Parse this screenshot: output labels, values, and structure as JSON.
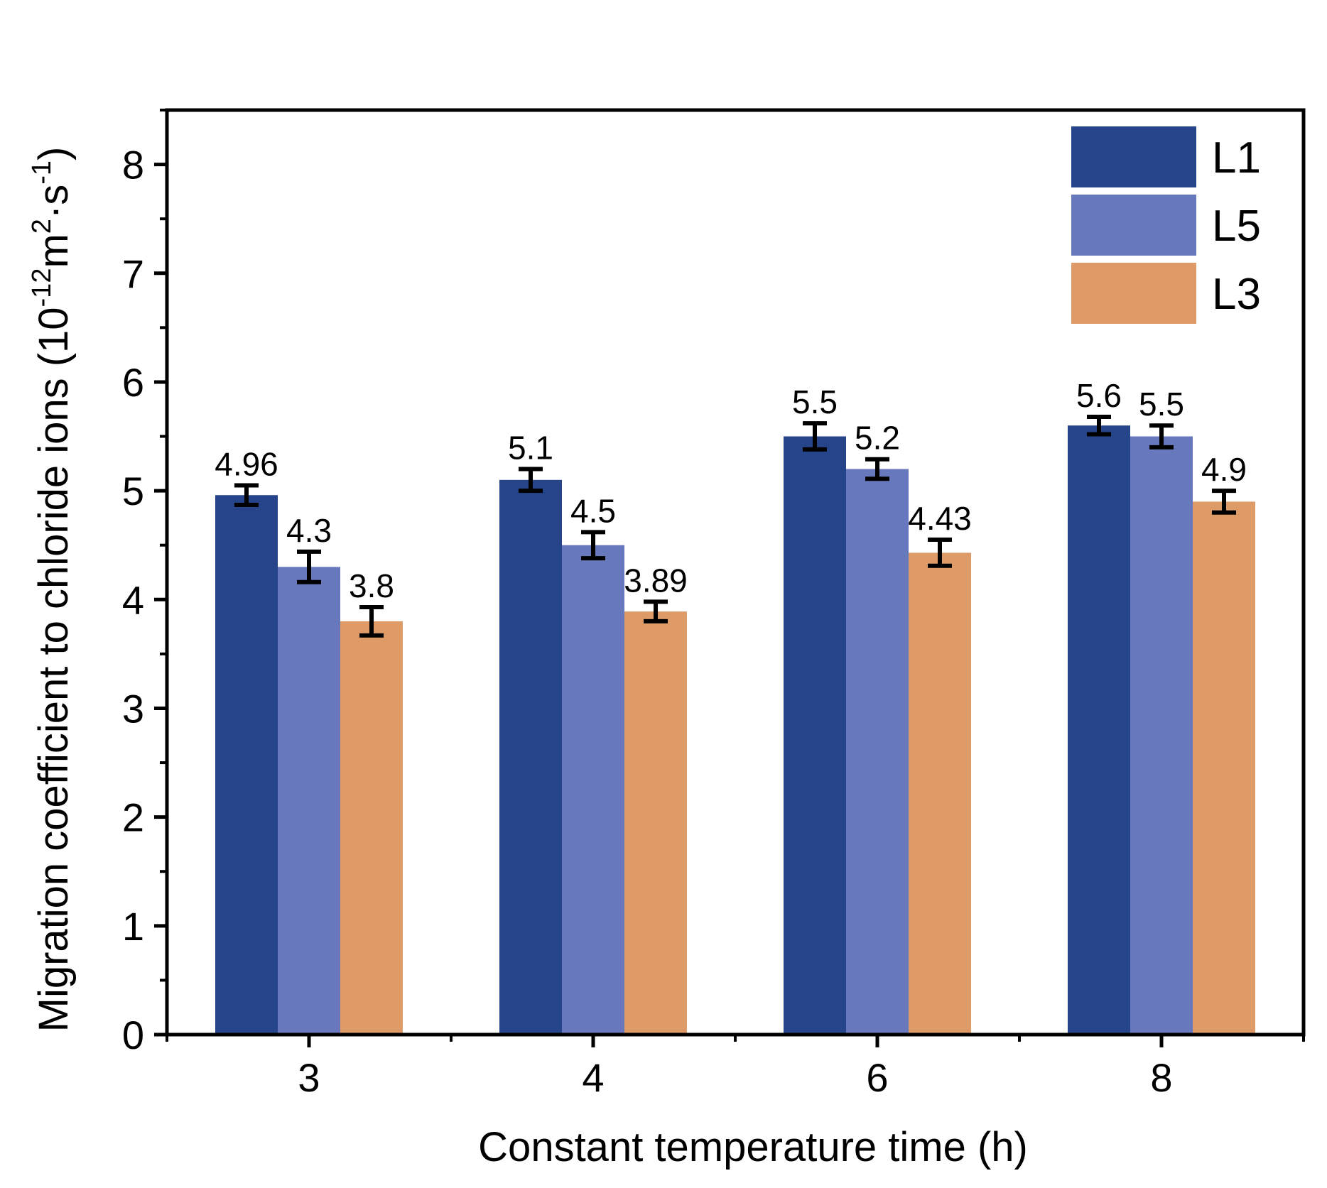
{
  "chart_data": {
    "type": "bar",
    "xlabel": "Constant temperature time (h)",
    "ylabel": "Migration coefficient to chloride ions (10",
    "ylabel_unit": {
      "sup1": "-12",
      "mid": "m",
      "sup2": "2",
      "dot": "·s",
      "sup3": "-1",
      "close": ")"
    },
    "categories": [
      "3",
      "4",
      "6",
      "8"
    ],
    "ylim": [
      0,
      8.5
    ],
    "yticks": [
      0,
      1,
      2,
      3,
      4,
      5,
      6,
      7,
      8
    ],
    "series": [
      {
        "name": "L1",
        "color": "#26448a",
        "values": [
          4.96,
          5.1,
          5.5,
          5.6
        ],
        "errors": [
          0.09,
          0.1,
          0.12,
          0.08
        ],
        "labels": [
          "4.96",
          "5.1",
          "5.5",
          "5.6"
        ]
      },
      {
        "name": "L5",
        "color": "#6878bc",
        "values": [
          4.3,
          4.5,
          5.2,
          5.5
        ],
        "errors": [
          0.14,
          0.12,
          0.09,
          0.1
        ],
        "labels": [
          "4.3",
          "4.5",
          "5.2",
          "5.5"
        ]
      },
      {
        "name": "L3",
        "color": "#de9b68",
        "values": [
          3.8,
          3.89,
          4.43,
          4.9
        ],
        "errors": [
          0.13,
          0.09,
          0.12,
          0.1
        ],
        "labels": [
          "3.8",
          "3.89",
          "4.43",
          "4.9"
        ]
      }
    ],
    "legend_position": "top-right",
    "grid": false
  }
}
